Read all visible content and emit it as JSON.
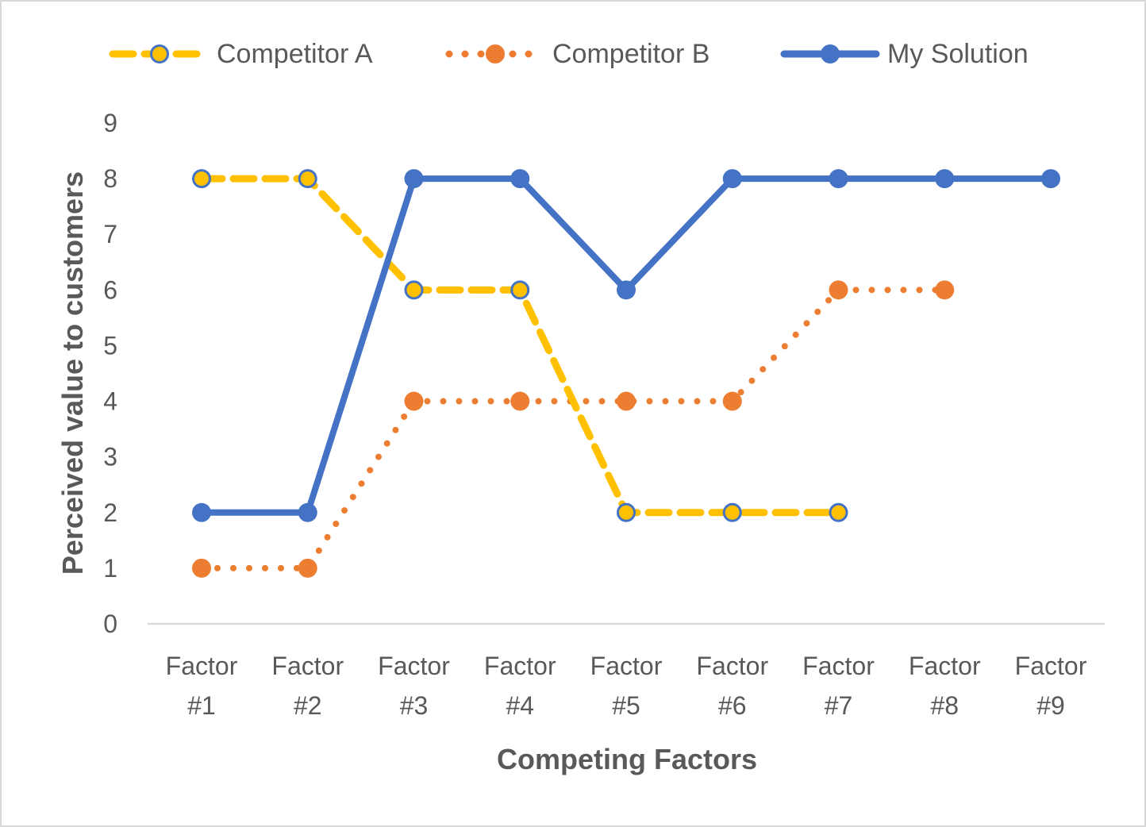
{
  "chart_data": {
    "type": "line",
    "title": "",
    "xlabel": "Competing Factors",
    "ylabel": "Perceived value to customers",
    "categories": [
      "Factor #1",
      "Factor #2",
      "Factor #3",
      "Factor #4",
      "Factor #5",
      "Factor #6",
      "Factor #7",
      "Factor #8",
      "Factor #9"
    ],
    "category_lines": [
      [
        "Factor",
        "#1"
      ],
      [
        "Factor",
        "#2"
      ],
      [
        "Factor",
        "#3"
      ],
      [
        "Factor",
        "#4"
      ],
      [
        "Factor",
        "#5"
      ],
      [
        "Factor",
        "#6"
      ],
      [
        "Factor",
        "#7"
      ],
      [
        "Factor",
        "#8"
      ],
      [
        "Factor",
        "#9"
      ]
    ],
    "ylim": [
      0,
      9
    ],
    "yticks": [
      "0",
      "1",
      "2",
      "3",
      "4",
      "5",
      "6",
      "7",
      "8",
      "9"
    ],
    "grid": false,
    "legend_position": "top",
    "series": [
      {
        "name": "Competitor A",
        "values": [
          8,
          8,
          6,
          6,
          2,
          2,
          2,
          null,
          null
        ],
        "color": "#FFC000",
        "marker_edge": "#4472C4",
        "line_style": "dashed"
      },
      {
        "name": "Competitor B",
        "values": [
          1,
          1,
          4,
          4,
          4,
          4,
          6,
          6,
          null
        ],
        "color": "#ED7D31",
        "marker_edge": "#ED7D31",
        "line_style": "dotted"
      },
      {
        "name": "My Solution",
        "values": [
          2,
          2,
          8,
          8,
          6,
          8,
          8,
          8,
          8
        ],
        "color": "#4472C4",
        "marker_edge": "#4472C4",
        "line_style": "solid"
      }
    ]
  },
  "legend": {
    "items": [
      {
        "label": "Competitor A"
      },
      {
        "label": "Competitor B"
      },
      {
        "label": "My Solution"
      }
    ]
  },
  "colors": {
    "axis_line": "#D9D9D9",
    "text": "#595959",
    "frame": "#D9D9D9"
  }
}
